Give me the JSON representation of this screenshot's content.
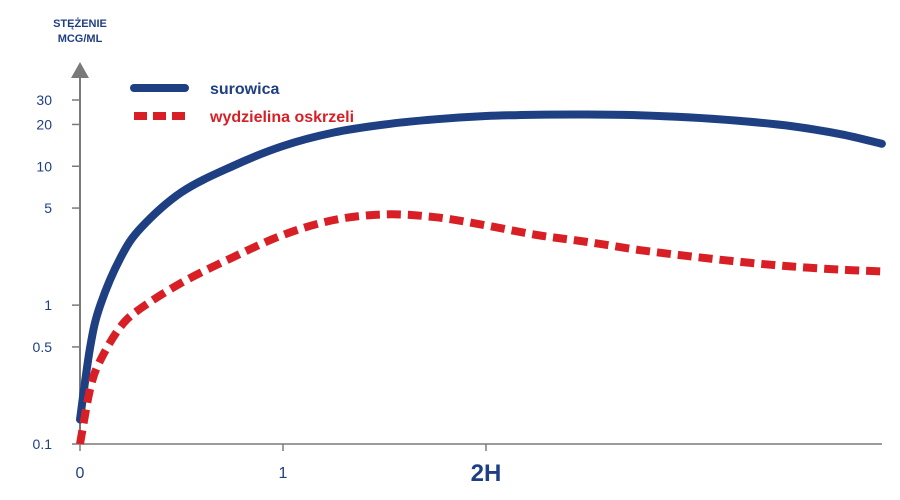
{
  "colors": {
    "axis": "#7a7a7a",
    "tick_text": "#1f3f83",
    "series_1": "#1f3f83",
    "series_2": "#d81f26"
  },
  "chart_data": {
    "type": "line",
    "title": "",
    "ylabel": "STĘŻENIE MCG/ML",
    "ylabel_lines": [
      "STĘŻENIE",
      "MCG/ML"
    ],
    "xlabel": "",
    "y_scale": "log",
    "ylim": [
      0.1,
      30
    ],
    "xlim": [
      0,
      3.95
    ],
    "x_ticks": [
      {
        "value": 0,
        "label": "0"
      },
      {
        "value": 1,
        "label": "1"
      },
      {
        "value": 2,
        "label": "2H"
      }
    ],
    "y_ticks": [
      {
        "value": 0.1,
        "label": "0.1"
      },
      {
        "value": 0.5,
        "label": "0.5"
      },
      {
        "value": 1,
        "label": "1"
      },
      {
        "value": 5,
        "label": "5"
      },
      {
        "value": 10,
        "label": "10"
      },
      {
        "value": 20,
        "label": "20"
      },
      {
        "value": 30,
        "label": "30"
      }
    ],
    "series": [
      {
        "name": "surowica",
        "style": "solid",
        "x": [
          0,
          0.05,
          0.1,
          0.2,
          0.3,
          0.5,
          0.75,
          1.0,
          1.25,
          1.5,
          1.75,
          2.0,
          2.25,
          2.5,
          2.75,
          3.0,
          3.25,
          3.5,
          3.75,
          3.95
        ],
        "values": [
          0.15,
          0.5,
          1.0,
          2.2,
          3.6,
          6.5,
          10.0,
          14.0,
          17.5,
          20.0,
          21.8,
          23.0,
          23.5,
          23.6,
          23.3,
          22.5,
          21.2,
          19.5,
          17.0,
          14.5
        ]
      },
      {
        "name": "wydzielina oskrzeli",
        "style": "dashed",
        "x": [
          0,
          0.05,
          0.1,
          0.2,
          0.3,
          0.5,
          0.75,
          1.0,
          1.25,
          1.5,
          1.75,
          2.0,
          2.25,
          2.5,
          2.75,
          3.0,
          3.25,
          3.5,
          3.75,
          3.95
        ],
        "values": [
          0.1,
          0.25,
          0.4,
          0.7,
          0.95,
          1.45,
          2.2,
          3.2,
          4.1,
          4.5,
          4.3,
          3.75,
          3.2,
          2.85,
          2.5,
          2.25,
          2.05,
          1.9,
          1.8,
          1.75
        ]
      }
    ]
  }
}
